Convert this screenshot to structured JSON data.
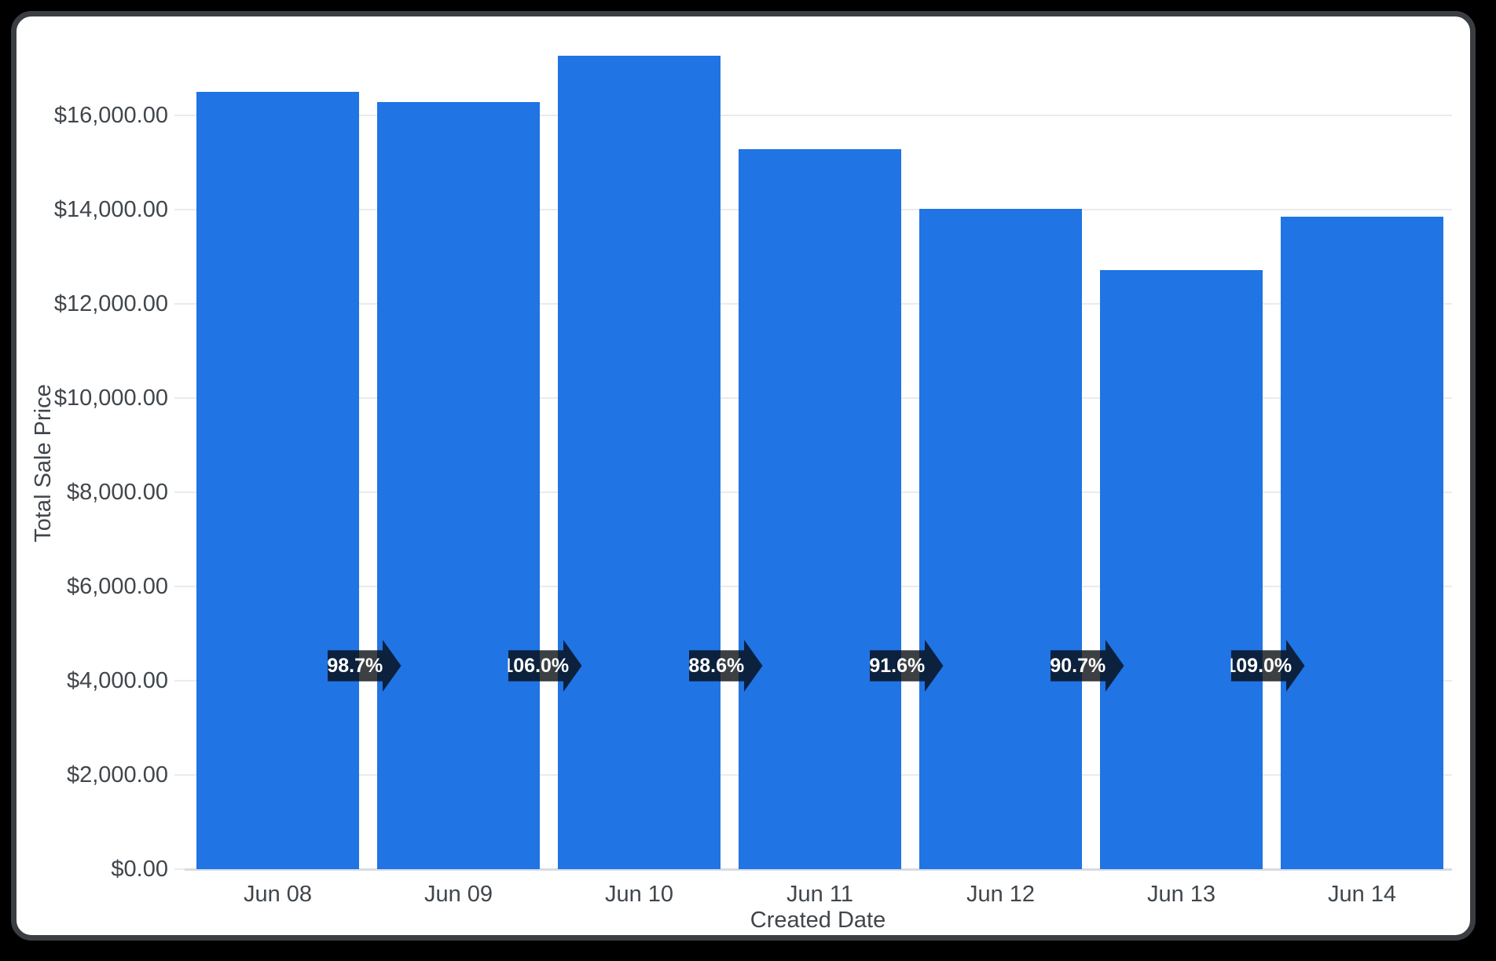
{
  "chart_data": {
    "type": "bar",
    "title": "",
    "categories": [
      "Jun 08",
      "Jun 09",
      "Jun 10",
      "Jun 11",
      "Jun 12",
      "Jun 13",
      "Jun 14"
    ],
    "series": [
      {
        "name": "Total Sale Price",
        "values": [
          16500,
          16290,
          17260,
          15290,
          14010,
          12710,
          13850
        ]
      }
    ],
    "percent_change_badges": [
      "98.7%",
      "106.0%",
      "88.6%",
      "91.6%",
      "90.7%",
      "109.0%"
    ],
    "xlabel": "Created Date",
    "ylabel": "Total Sale Price",
    "y_ticks": [
      {
        "value": 0,
        "label": "$0.00"
      },
      {
        "value": 2000,
        "label": "$2,000.00"
      },
      {
        "value": 4000,
        "label": "$4,000.00"
      },
      {
        "value": 6000,
        "label": "$6,000.00"
      },
      {
        "value": 8000,
        "label": "$8,000.00"
      },
      {
        "value": 10000,
        "label": "$10,000.00"
      },
      {
        "value": 12000,
        "label": "$12,000.00"
      },
      {
        "value": 14000,
        "label": "$14,000.00"
      },
      {
        "value": 16000,
        "label": "$16,000.00"
      }
    ],
    "ylim": [
      0,
      17800
    ],
    "grid": "horizontal",
    "legend": "none"
  },
  "colors": {
    "bar": "#2074e4",
    "page_background": "#000000",
    "card_background": "#ffffff",
    "card_border": "#3a3e42",
    "gridline": "#ebebeb",
    "baseline": "#d8dbe2",
    "tick_text": "#40464b",
    "badge_background": "rgba(6,10,14,0.78)",
    "badge_text": "#ffffff"
  }
}
